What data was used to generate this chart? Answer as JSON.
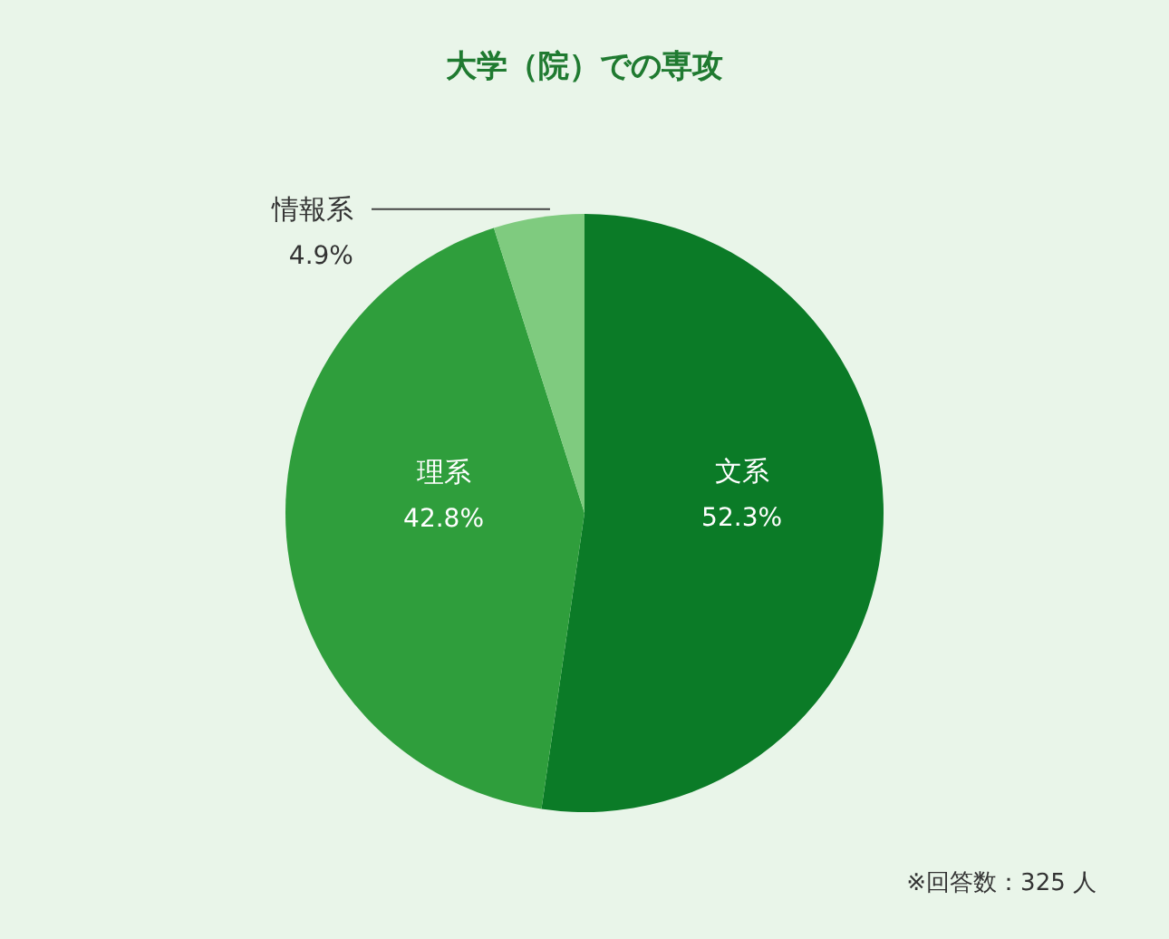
{
  "chart_data": {
    "type": "pie",
    "title": "大学（院）での専攻",
    "categories": [
      "文系",
      "理系",
      "情報系"
    ],
    "values": [
      52.3,
      42.8,
      4.9
    ],
    "colors": [
      "#0b7b27",
      "#2f9e3c",
      "#7fcb7f"
    ],
    "value_labels": [
      "52.3%",
      "42.8%",
      "4.9%"
    ],
    "legend": false,
    "annotations": [
      "※回答数：325 人"
    ]
  }
}
